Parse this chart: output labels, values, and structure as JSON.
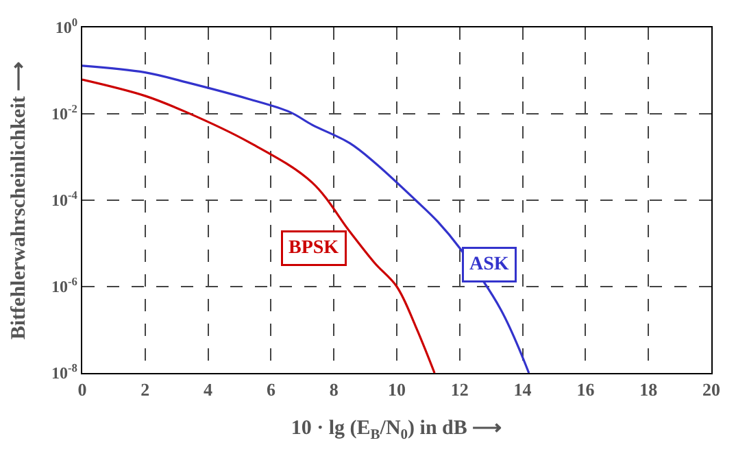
{
  "chart_data": {
    "type": "line",
    "xlabel": "10 · lg (E$_{B}$/N$_{0}$) in dB ⟶",
    "ylabel": "Bitfehlerwahrscheinlichkeit ⟶",
    "log": "y",
    "grid": true,
    "legend": false,
    "xlim": [
      0,
      20
    ],
    "xticks": [
      0,
      2,
      4,
      6,
      8,
      10,
      12,
      14,
      16,
      18,
      20
    ],
    "ylim": [
      1e-08,
      1
    ],
    "yticks": [
      {
        "value": 1,
        "label": "10$^{0}$"
      },
      {
        "value": 0.01,
        "label": "10$^{-2}$"
      },
      {
        "value": 0.0001,
        "label": "10$^{-4}$"
      },
      {
        "value": 1e-06,
        "label": "10$^{-6}$"
      },
      {
        "value": 1e-08,
        "label": "10$^{-8}$"
      }
    ],
    "series": [
      {
        "name": "BPSK",
        "color": "#cc0000",
        "x": [
          0,
          2,
          3.3,
          5.3,
          7.3,
          8.5,
          9.3,
          10,
          10.6,
          11.2
        ],
        "values": [
          0.062,
          0.026,
          0.011,
          0.0022,
          0.00026,
          1.9e-05,
          3.5e-06,
          1e-06,
          1.2e-07,
          1e-08
        ]
      },
      {
        "name": "ASK",
        "color": "#3333cc",
        "x": [
          0,
          2,
          3.3,
          5.3,
          6.6,
          7.3,
          8.5,
          9.3,
          10.6,
          11.3,
          12,
          13.3,
          14.2
        ],
        "values": [
          0.13,
          0.091,
          0.054,
          0.022,
          0.011,
          0.0056,
          0.0021,
          0.00074,
          0.0001,
          3.2e-05,
          7.8e-06,
          3e-07,
          1e-08
        ]
      }
    ]
  }
}
